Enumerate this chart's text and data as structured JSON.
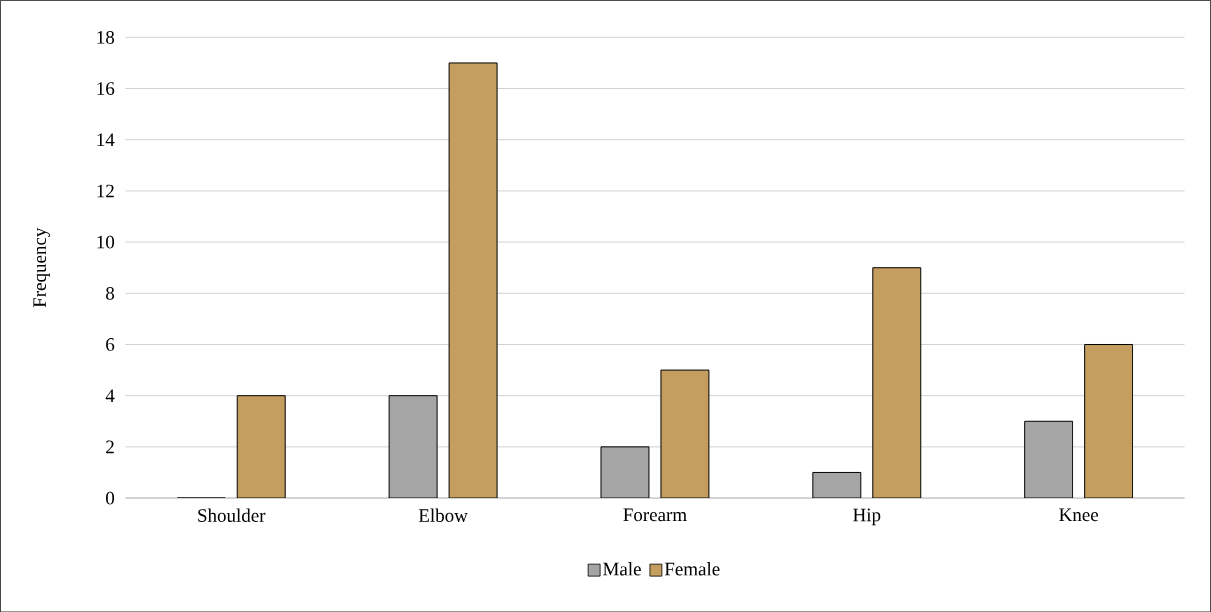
{
  "chart_data": {
    "type": "bar",
    "ylabel": "Frequency",
    "categories": [
      "Shoulder",
      "Elbow",
      "Forearm",
      "Hip",
      "Knee"
    ],
    "series": [
      {
        "name": "Male",
        "color": "#a5a5a5",
        "values": [
          0,
          4,
          2,
          1,
          3
        ]
      },
      {
        "name": "Female",
        "color": "#c39e5e",
        "values": [
          4,
          17,
          5,
          9,
          6
        ]
      }
    ],
    "ylim": [
      0,
      18
    ],
    "yticks": [
      0,
      2,
      4,
      6,
      8,
      10,
      12,
      14,
      16,
      18
    ],
    "grid": "y",
    "legend": "bottom"
  }
}
